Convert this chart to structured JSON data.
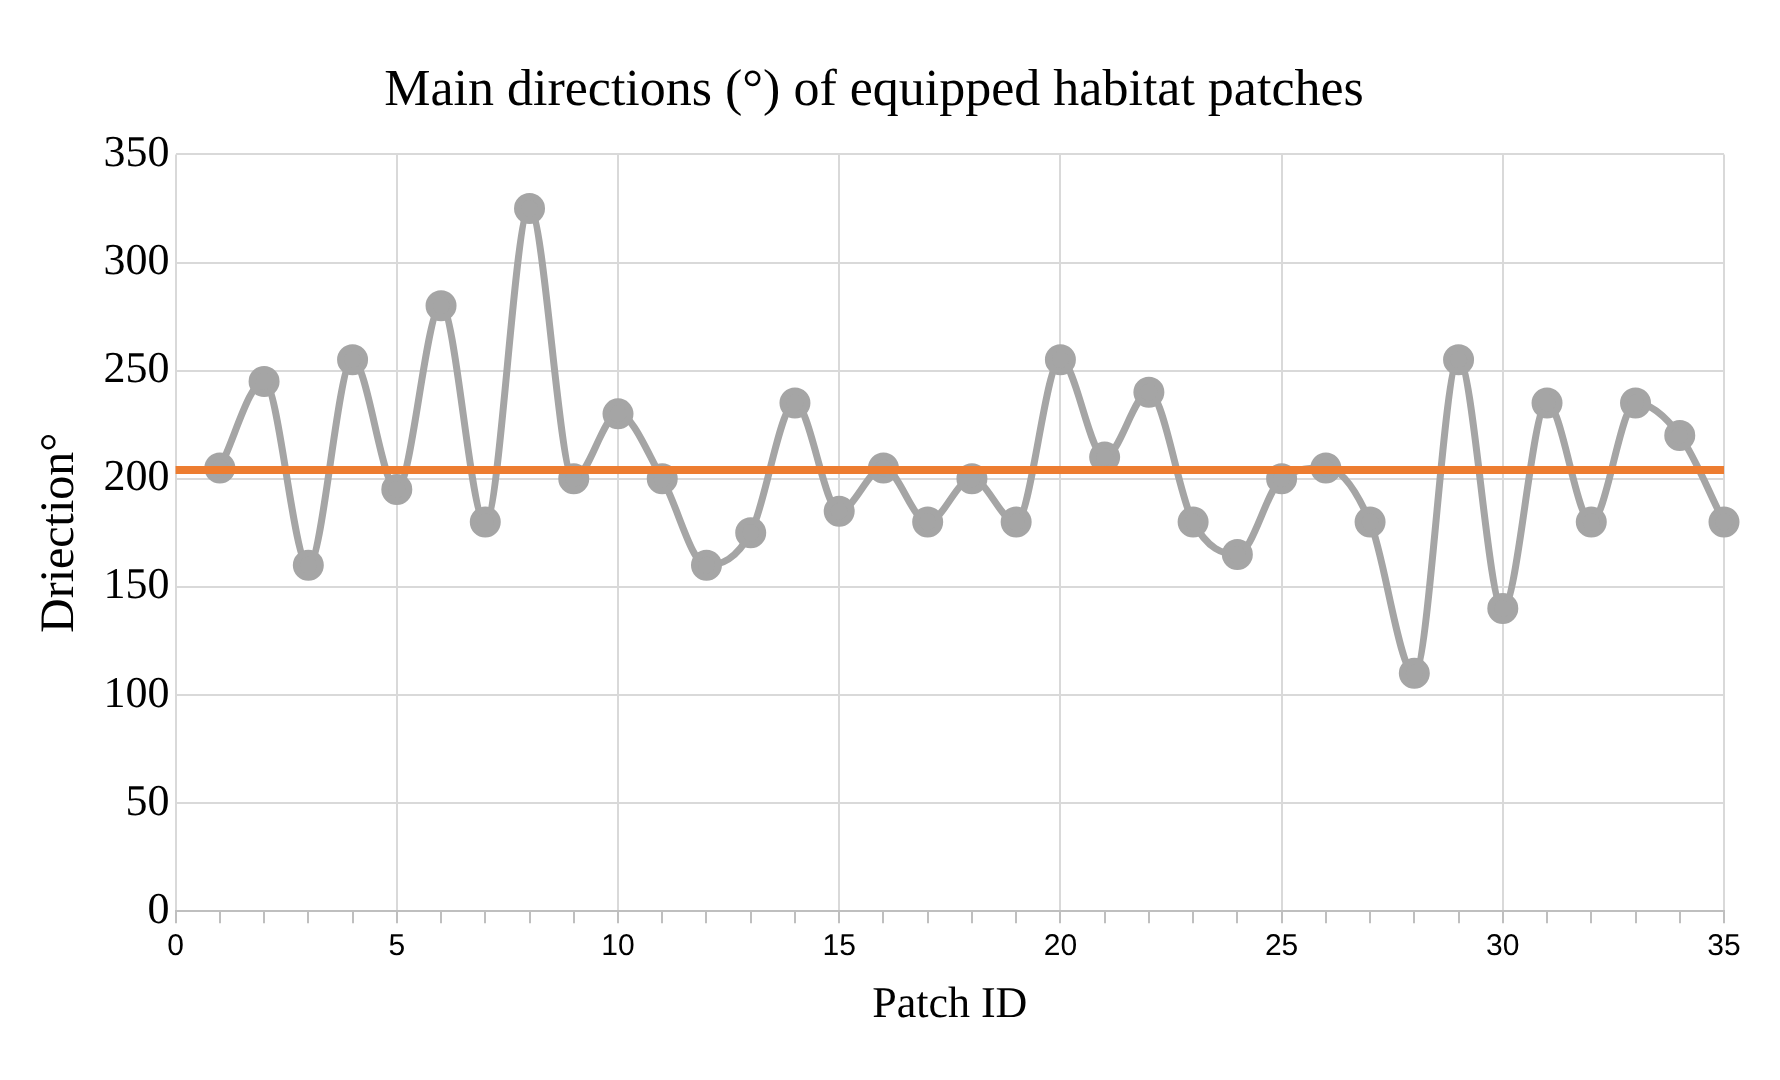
{
  "chart_data": {
    "type": "line",
    "title": "Main directions (°) of equipped habitat patches",
    "xlabel": "Patch ID",
    "ylabel": "Driection°",
    "x": [
      1,
      2,
      3,
      4,
      5,
      6,
      7,
      8,
      9,
      10,
      11,
      12,
      13,
      14,
      15,
      16,
      17,
      18,
      19,
      20,
      21,
      22,
      23,
      24,
      25,
      26,
      27,
      28,
      29,
      30,
      31,
      32,
      33,
      34,
      35
    ],
    "series": [
      {
        "color": "#a5a5a5",
        "values": [
          205,
          245,
          160,
          255,
          195,
          280,
          180,
          325,
          200,
          230,
          200,
          160,
          175,
          235,
          185,
          205,
          180,
          200,
          180,
          255,
          210,
          240,
          180,
          165,
          200,
          205,
          180,
          110,
          255,
          140,
          235,
          180,
          235,
          220,
          180
        ]
      }
    ],
    "ref_lines": [
      {
        "axis": "y",
        "value": 204,
        "color": "#ed7d31"
      }
    ],
    "xlim": [
      0,
      35
    ],
    "xticks": [
      0,
      {
        "value": 1,
        "label": null
      },
      {
        "value": 2,
        "label": null
      },
      {
        "value": 3,
        "label": null
      },
      {
        "value": 4,
        "label": null
      },
      5,
      {
        "value": 6,
        "label": null
      },
      {
        "value": 7,
        "label": null
      },
      {
        "value": 8,
        "label": null
      },
      {
        "value": 9,
        "label": null
      },
      10,
      {
        "value": 11,
        "label": null
      },
      {
        "value": 12,
        "label": null
      },
      {
        "value": 13,
        "label": null
      },
      {
        "value": 14,
        "label": null
      },
      15,
      {
        "value": 16,
        "label": null
      },
      {
        "value": 17,
        "label": null
      },
      {
        "value": 18,
        "label": null
      },
      {
        "value": 19,
        "label": null
      },
      20,
      {
        "value": 21,
        "label": null
      },
      {
        "value": 22,
        "label": null
      },
      {
        "value": 23,
        "label": null
      },
      {
        "value": 24,
        "label": null
      },
      25,
      {
        "value": 26,
        "label": null
      },
      {
        "value": 27,
        "label": null
      },
      {
        "value": 28,
        "label": null
      },
      {
        "value": 29,
        "label": null
      },
      30,
      {
        "value": 31,
        "label": null
      },
      {
        "value": 32,
        "label": null
      },
      {
        "value": 33,
        "label": null
      },
      {
        "value": 34,
        "label": null
      },
      35
    ],
    "ylim": [
      0,
      350
    ],
    "yticks": [
      0,
      50,
      100,
      150,
      200,
      250,
      300,
      350
    ],
    "grid": true,
    "marker": "circle",
    "line_style": "solid"
  }
}
